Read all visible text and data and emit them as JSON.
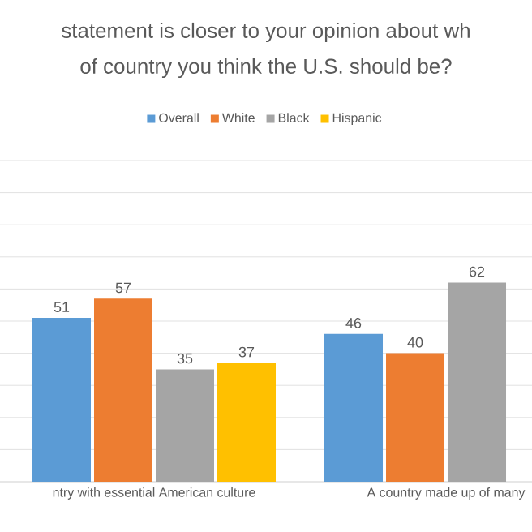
{
  "chart_data": {
    "type": "bar",
    "title": "statement is closer to your opinion about wh",
    "subtitle": "of country you think the U.S. should be?",
    "categories": [
      "ntry with essential American culture",
      "A country made up of many"
    ],
    "series": [
      {
        "name": "Overall",
        "color": "#5b9bd5",
        "values": [
          51,
          46
        ]
      },
      {
        "name": "White",
        "color": "#ed7d31",
        "values": [
          57,
          40
        ]
      },
      {
        "name": "Black",
        "color": "#a5a5a5",
        "values": [
          35,
          62
        ]
      },
      {
        "name": "Hispanic",
        "color": "#ffc000",
        "values": [
          37,
          null
        ]
      }
    ],
    "ylim": [
      0,
      100
    ],
    "yticks": [
      0,
      10,
      20,
      30,
      40,
      50,
      60,
      70,
      80,
      90,
      100
    ],
    "grid": "y",
    "legend": "top",
    "tick_labels": "x",
    "data_labels": true
  }
}
